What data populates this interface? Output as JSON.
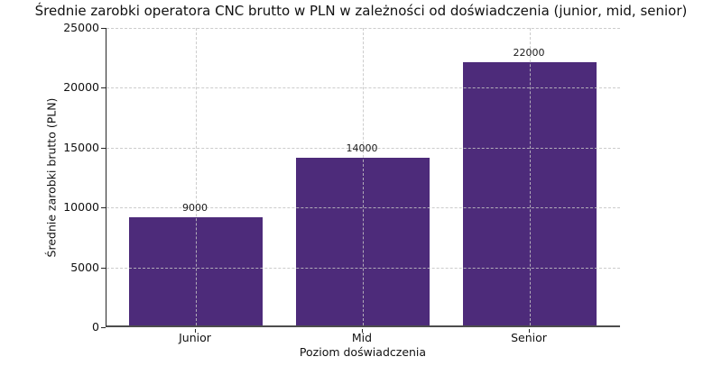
{
  "chart_data": {
    "type": "bar",
    "title": "Średnie zarobki operatora CNC brutto w PLN w zależności od doświadczenia (junior, mid, senior)",
    "xlabel": "Poziom doświadczenia",
    "ylabel": "Średnie zarobki brutto (PLN)",
    "categories": [
      "Junior",
      "Mid",
      "Senior"
    ],
    "values": [
      9000,
      14000,
      22000
    ],
    "value_labels": [
      "9000",
      "14000",
      "22000"
    ],
    "yticks": [
      0,
      5000,
      10000,
      15000,
      20000,
      25000
    ],
    "ylim": [
      0,
      25000
    ],
    "grid": "both-dashed",
    "legend": "none",
    "colors": {
      "bar": "#4d2b7a",
      "grid": "#c3c3c3",
      "axis": "#4d4d4d",
      "text": "#111111"
    }
  }
}
